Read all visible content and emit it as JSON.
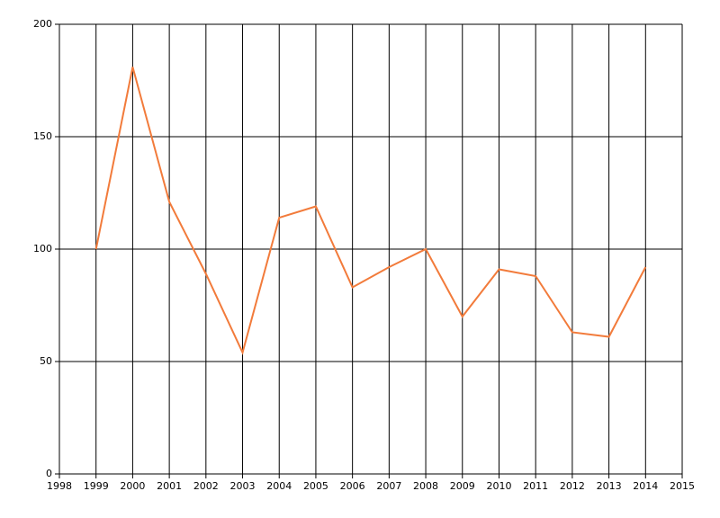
{
  "chart_data": {
    "type": "line",
    "x": [
      1999,
      2000,
      2001,
      2002,
      2003,
      2004,
      2005,
      2006,
      2007,
      2008,
      2009,
      2010,
      2011,
      2012,
      2013,
      2014
    ],
    "series": [
      {
        "color": "#f27b3b",
        "values": [
          100,
          181,
          121,
          89,
          54,
          114,
          119,
          83,
          92,
          100,
          70,
          91,
          88,
          63,
          61,
          92
        ]
      }
    ],
    "xlim": [
      1998,
      2015
    ],
    "xticks": [
      1998,
      1999,
      2000,
      2001,
      2002,
      2003,
      2004,
      2005,
      2006,
      2007,
      2008,
      2009,
      2010,
      2011,
      2012,
      2013,
      2014,
      2015
    ],
    "ylim": [
      0,
      200
    ],
    "yticks": [
      0,
      50,
      100,
      150,
      200
    ],
    "grid": true
  }
}
